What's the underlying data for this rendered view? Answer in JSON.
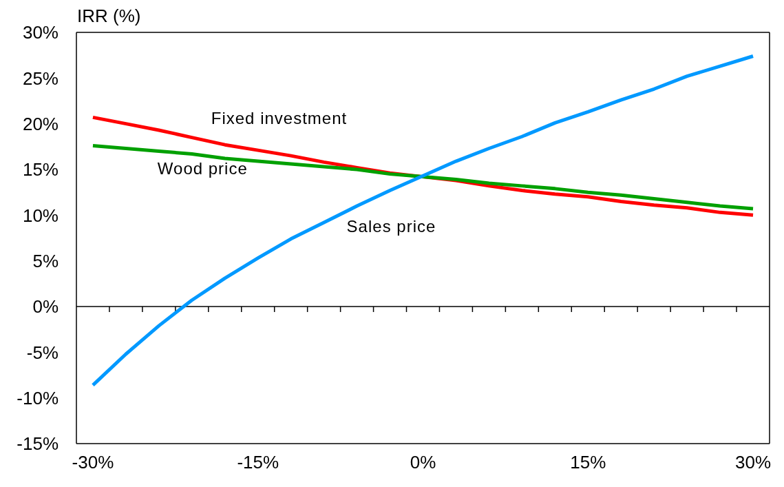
{
  "chart_data": {
    "type": "line",
    "ylabel": "IRR (%)",
    "x": [
      -30,
      -27,
      -24,
      -21,
      -18,
      -15,
      -12,
      -9,
      -6,
      -3,
      0,
      3,
      6,
      9,
      12,
      15,
      18,
      21,
      24,
      27,
      30
    ],
    "series": [
      {
        "name": "Fixed investment",
        "color": "#ff0000",
        "values": [
          20.7,
          20.0,
          19.3,
          18.5,
          17.7,
          17.1,
          16.5,
          15.8,
          15.2,
          14.6,
          14.2,
          13.8,
          13.2,
          12.7,
          12.3,
          12.0,
          11.5,
          11.1,
          10.8,
          10.3,
          10.0
        ]
      },
      {
        "name": "Wood price",
        "color": "#00a000",
        "values": [
          17.6,
          17.3,
          17.0,
          16.7,
          16.2,
          15.9,
          15.6,
          15.3,
          15.0,
          14.5,
          14.2,
          13.9,
          13.5,
          13.2,
          12.9,
          12.5,
          12.2,
          11.8,
          11.4,
          11.0,
          10.7
        ]
      },
      {
        "name": "Sales price",
        "color": "#0099ff",
        "values": [
          -8.6,
          -5.2,
          -2.1,
          0.7,
          3.1,
          5.3,
          7.4,
          9.2,
          11.0,
          12.7,
          14.3,
          15.9,
          17.3,
          18.6,
          20.1,
          21.3,
          22.6,
          23.8,
          25.2,
          26.3,
          27.4
        ]
      }
    ],
    "xlim": [
      -31.5,
      31.5
    ],
    "xticks": [
      {
        "value": -30,
        "label": "-30%"
      },
      {
        "value": -28.5,
        "label": null
      },
      {
        "value": -25.5,
        "label": null
      },
      {
        "value": -22.5,
        "label": null
      },
      {
        "value": -19.5,
        "label": null
      },
      {
        "value": -16.5,
        "label": null
      },
      {
        "value": -15,
        "label": "-15%"
      },
      {
        "value": -13.5,
        "label": null
      },
      {
        "value": -10.5,
        "label": null
      },
      {
        "value": -7.5,
        "label": null
      },
      {
        "value": -4.5,
        "label": null
      },
      {
        "value": -1.5,
        "label": null
      },
      {
        "value": 0,
        "label": "0%"
      },
      {
        "value": 1.5,
        "label": null
      },
      {
        "value": 4.5,
        "label": null
      },
      {
        "value": 7.5,
        "label": null
      },
      {
        "value": 10.5,
        "label": null
      },
      {
        "value": 13.5,
        "label": null
      },
      {
        "value": 15,
        "label": "15%"
      },
      {
        "value": 16.5,
        "label": null
      },
      {
        "value": 19.5,
        "label": null
      },
      {
        "value": 22.5,
        "label": null
      },
      {
        "value": 25.5,
        "label": null
      },
      {
        "value": 28.5,
        "label": null
      },
      {
        "value": 30,
        "label": "30%"
      }
    ],
    "ylim": [
      -15,
      30
    ],
    "yticks": [
      {
        "value": -15,
        "label": "-15%"
      },
      {
        "value": -10,
        "label": "-10%"
      },
      {
        "value": -5,
        "label": "-5%"
      },
      {
        "value": 0,
        "label": "0%"
      },
      {
        "value": 5,
        "label": "5%"
      },
      {
        "value": 10,
        "label": "10%"
      },
      {
        "value": 15,
        "label": "15%"
      },
      {
        "value": 20,
        "label": "20%"
      },
      {
        "value": 25,
        "label": "25%"
      },
      {
        "value": 30,
        "label": "30%"
      }
    ],
    "ref_lines": [
      {
        "axis": "y",
        "value": 0,
        "color": "#000000",
        "line_style": "solid"
      }
    ],
    "grid": false,
    "legend": false,
    "marker": "none",
    "line_style": "solid"
  }
}
